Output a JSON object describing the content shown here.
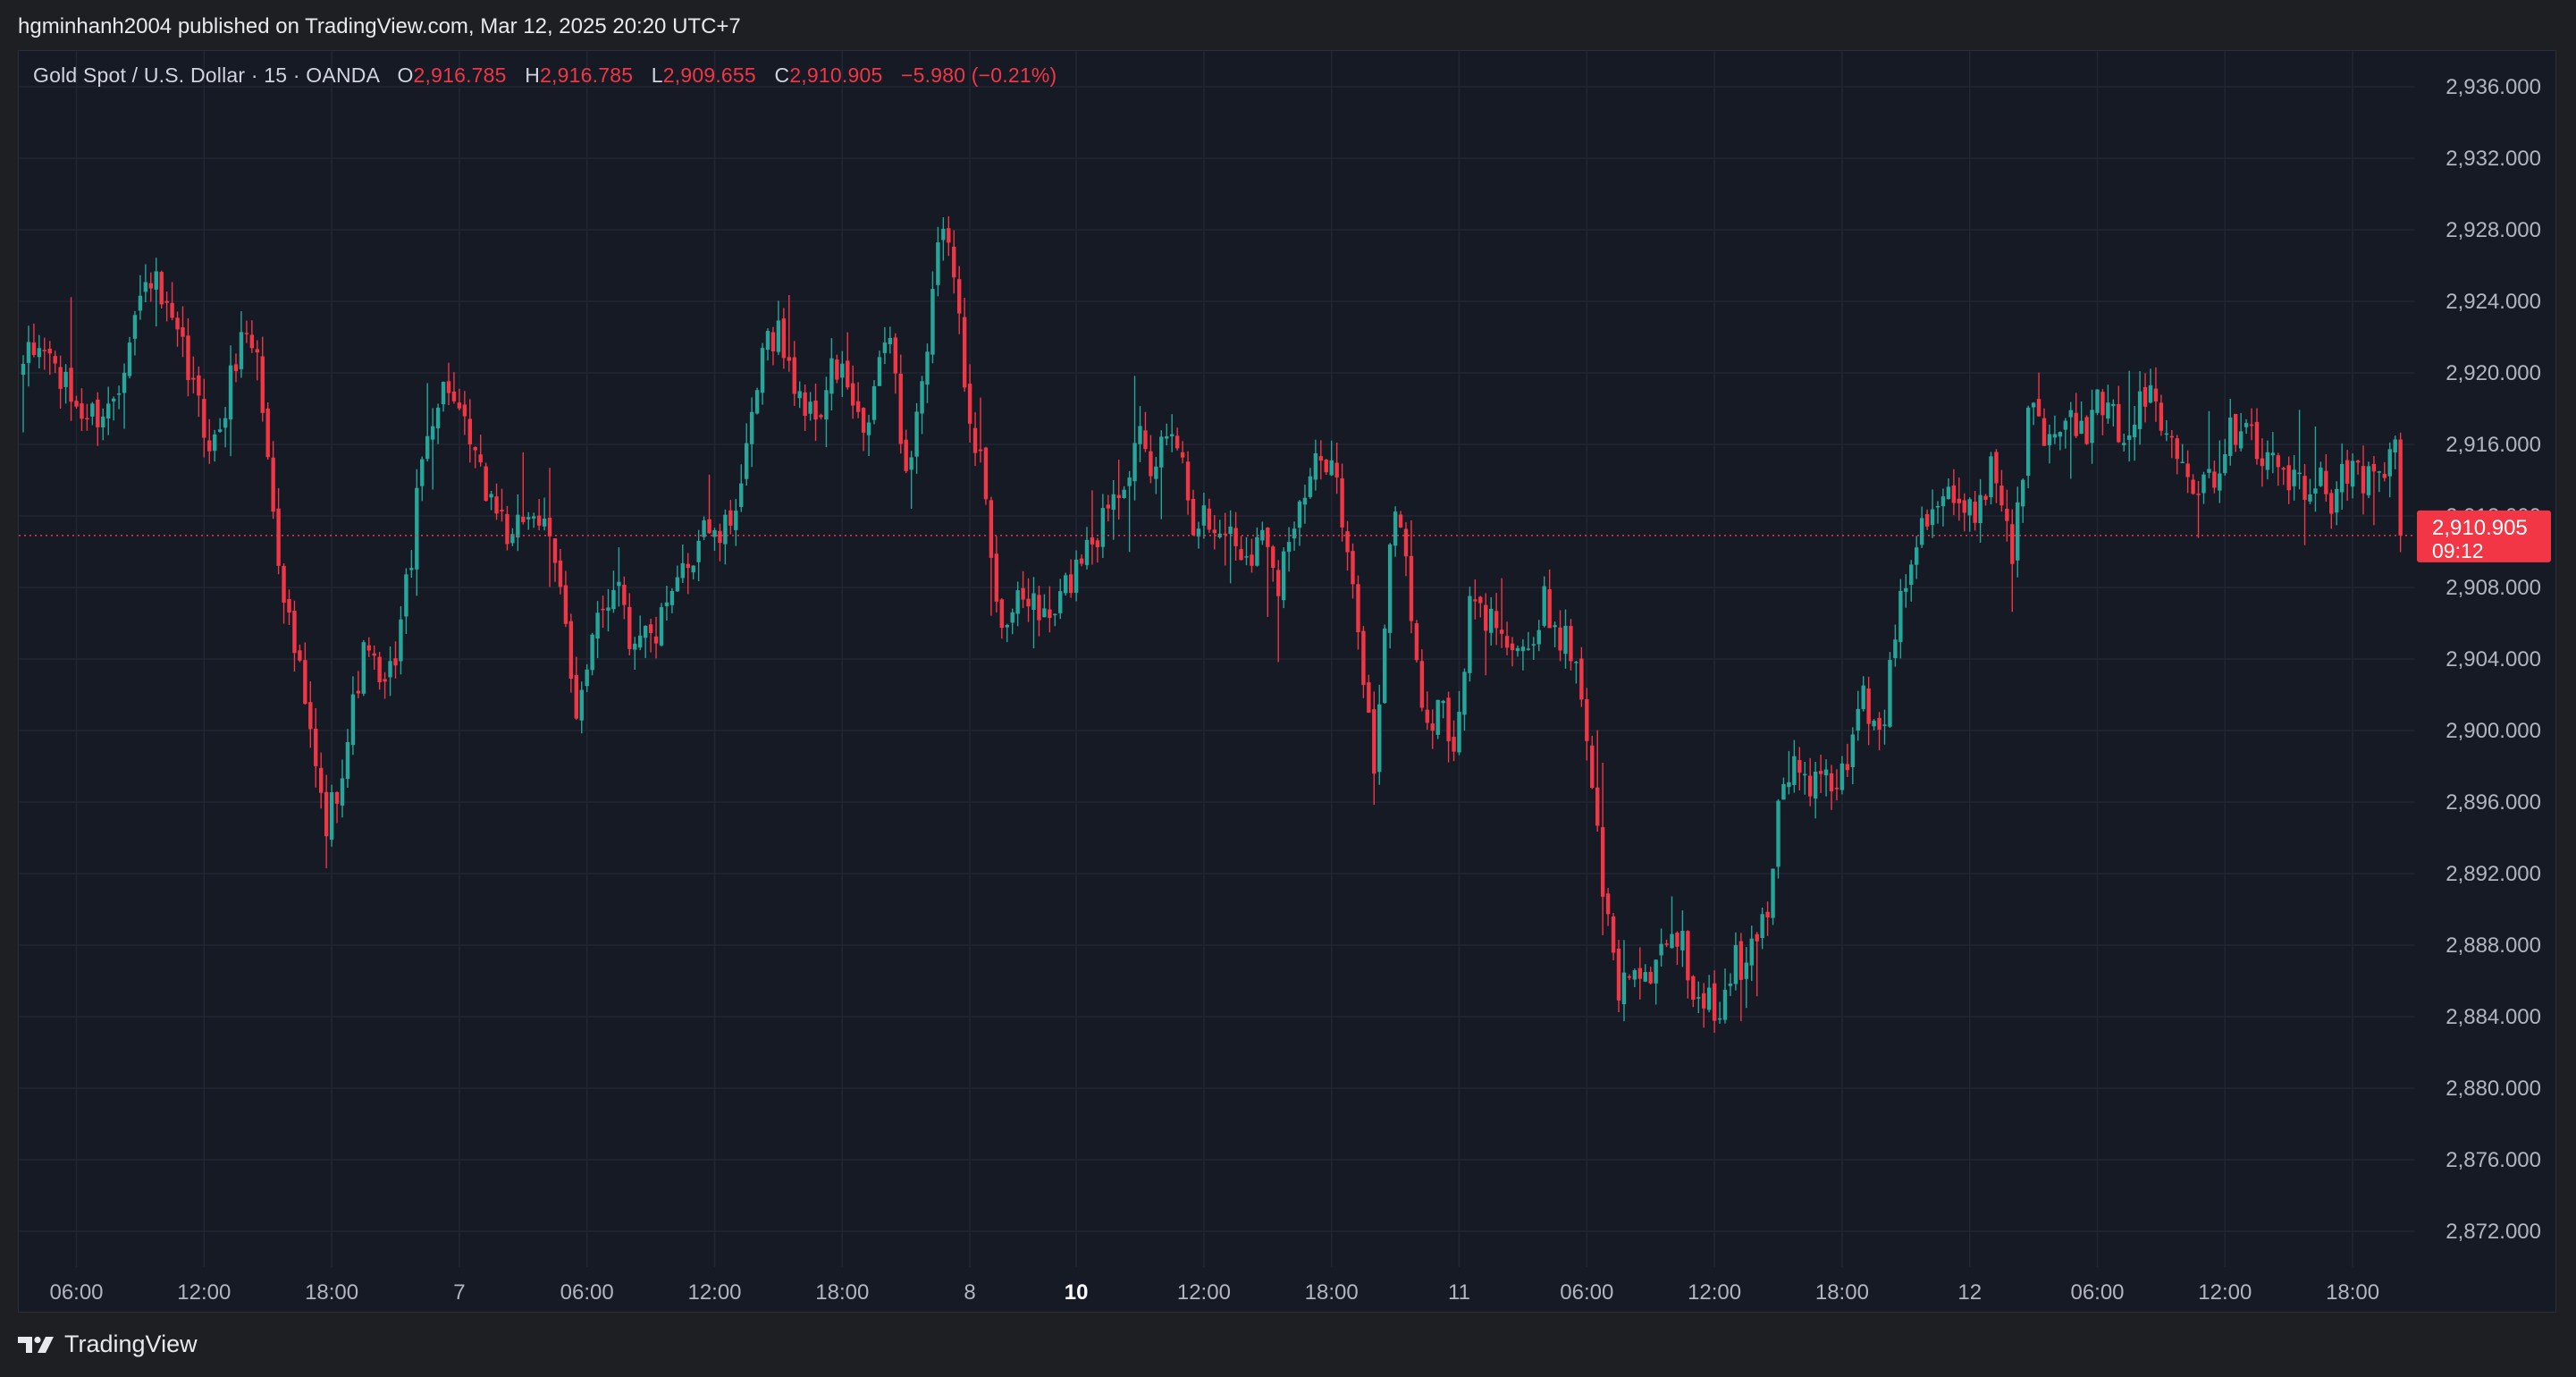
{
  "header": {
    "publish_line": "hgminhanh2004 published on TradingView.com, Mar 12, 2025 20:20 UTC+7"
  },
  "legend": {
    "symbol": "Gold Spot / U.S. Dollar · 15 · OANDA",
    "open_label": "O",
    "open": "2,916.785",
    "high_label": "H",
    "high": "2,916.785",
    "low_label": "L",
    "low": "2,909.655",
    "close_label": "C",
    "close": "2,910.905",
    "change": "−5.980 (−0.21%)"
  },
  "price_tag": {
    "price": "2,910.905",
    "countdown": "09:12"
  },
  "footer": {
    "brand": "TradingView",
    "logo_icon": "tradingview-logo-icon"
  },
  "colors": {
    "up": "#26a69a",
    "down": "#f23645",
    "background": "#161a25",
    "grid": "#222633",
    "axis_text": "#b2b5be"
  },
  "chart_data": {
    "type": "candlestick",
    "title": "Gold Spot / U.S. Dollar · 15 · OANDA",
    "ylim": [
      2870,
      2938
    ],
    "y_ticks": [
      "2,872.000",
      "2,876.000",
      "2,880.000",
      "2,884.000",
      "2,888.000",
      "2,892.000",
      "2,896.000",
      "2,900.000",
      "2,904.000",
      "2,908.000",
      "2,912.000",
      "2,916.000",
      "2,920.000",
      "2,924.000",
      "2,928.000",
      "2,932.000",
      "2,936.000"
    ],
    "x_ticks": [
      {
        "label": "06:00",
        "bar": 10,
        "bold": false
      },
      {
        "label": "12:00",
        "bar": 34,
        "bold": false
      },
      {
        "label": "18:00",
        "bar": 58,
        "bold": false
      },
      {
        "label": "7",
        "bar": 82,
        "bold": false
      },
      {
        "label": "06:00",
        "bar": 106,
        "bold": false
      },
      {
        "label": "12:00",
        "bar": 130,
        "bold": false
      },
      {
        "label": "18:00",
        "bar": 154,
        "bold": false
      },
      {
        "label": "8",
        "bar": 178,
        "bold": false
      },
      {
        "label": "10",
        "bar": 198,
        "bold": true
      },
      {
        "label": "12:00",
        "bar": 222,
        "bold": false
      },
      {
        "label": "18:00",
        "bar": 246,
        "bold": false
      },
      {
        "label": "11",
        "bar": 270,
        "bold": false
      },
      {
        "label": "06:00",
        "bar": 294,
        "bold": false
      },
      {
        "label": "12:00",
        "bar": 318,
        "bold": false
      },
      {
        "label": "18:00",
        "bar": 342,
        "bold": false
      },
      {
        "label": "12",
        "bar": 366,
        "bold": false
      },
      {
        "label": "06:00",
        "bar": 390,
        "bold": false
      },
      {
        "label": "12:00",
        "bar": 414,
        "bold": false
      },
      {
        "label": "18:00",
        "bar": 438,
        "bold": false
      }
    ],
    "bar_count": 448,
    "last_price": 2910.905,
    "path_points": [
      [
        0,
        2920.5
      ],
      [
        4,
        2921.5
      ],
      [
        8,
        2919
      ],
      [
        12,
        2917.5
      ],
      [
        16,
        2918
      ],
      [
        18,
        2919.5
      ],
      [
        20,
        2922.5
      ],
      [
        24,
        2925.5
      ],
      [
        27,
        2923
      ],
      [
        30,
        2921
      ],
      [
        34,
        2917
      ],
      [
        36,
        2916
      ],
      [
        38,
        2918
      ],
      [
        40,
        2921
      ],
      [
        42,
        2922.5
      ],
      [
        44,
        2921
      ],
      [
        46,
        2915
      ],
      [
        48,
        2910
      ],
      [
        50,
        2906
      ],
      [
        52,
        2903
      ],
      [
        54,
        2899.5
      ],
      [
        56,
        2896
      ],
      [
        57,
        2894.5
      ],
      [
        59,
        2897
      ],
      [
        61,
        2899.5
      ],
      [
        63,
        2903
      ],
      [
        65,
        2905
      ],
      [
        67,
        2902
      ],
      [
        69,
        2903
      ],
      [
        71,
        2906
      ],
      [
        73,
        2910
      ],
      [
        75,
        2915
      ],
      [
        77,
        2918
      ],
      [
        80,
        2919.5
      ],
      [
        82,
        2917
      ],
      [
        84,
        2916
      ],
      [
        86,
        2914
      ],
      [
        88,
        2913
      ],
      [
        90,
        2912
      ],
      [
        92,
        2910
      ],
      [
        94,
        2912
      ],
      [
        96,
        2912.5
      ],
      [
        98,
        2911
      ],
      [
        100,
        2909
      ],
      [
        102,
        2906.5
      ],
      [
        104,
        2901
      ],
      [
        106,
        2903
      ],
      [
        108,
        2906
      ],
      [
        110,
        2907.5
      ],
      [
        112,
        2909
      ],
      [
        114,
        2905
      ],
      [
        116,
        2906
      ],
      [
        118,
        2905
      ],
      [
        120,
        2906
      ],
      [
        122,
        2907
      ],
      [
        124,
        2909
      ],
      [
        126,
        2910
      ],
      [
        128,
        2912
      ],
      [
        130,
        2910.5
      ],
      [
        132,
        2911
      ],
      [
        134,
        2913
      ],
      [
        136,
        2915
      ],
      [
        138,
        2919
      ],
      [
        140,
        2922
      ],
      [
        142,
        2922.5
      ],
      [
        144,
        2920
      ],
      [
        146,
        2919
      ],
      [
        148,
        2917.5
      ],
      [
        150,
        2918
      ],
      [
        152,
        2920
      ],
      [
        154,
        2920
      ],
      [
        156,
        2918
      ],
      [
        158,
        2916
      ],
      [
        160,
        2919
      ],
      [
        162,
        2922
      ],
      [
        164,
        2920
      ],
      [
        166,
        2914
      ],
      [
        168,
        2918
      ],
      [
        170,
        2921
      ],
      [
        172,
        2926.5
      ],
      [
        174,
        2928
      ],
      [
        175,
        2925
      ],
      [
        177,
        2920
      ],
      [
        179,
        2916.5
      ],
      [
        181,
        2913
      ],
      [
        182,
        2909
      ],
      [
        184,
        2906.5
      ],
      [
        186,
        2906.5
      ],
      [
        188,
        2907
      ],
      [
        190,
        2907.5
      ],
      [
        192,
        2906
      ],
      [
        194,
        2906.5
      ],
      [
        196,
        2908
      ],
      [
        198,
        2909
      ],
      [
        200,
        2911
      ],
      [
        202,
        2911
      ],
      [
        204,
        2913
      ],
      [
        206,
        2914
      ],
      [
        208,
        2915
      ],
      [
        210,
        2916
      ],
      [
        212,
        2914
      ],
      [
        214,
        2916
      ],
      [
        216,
        2917.5
      ],
      [
        218,
        2915
      ],
      [
        220,
        2912
      ],
      [
        222,
        2912
      ],
      [
        224,
        2911
      ],
      [
        226,
        2911.5
      ],
      [
        228,
        2910.5
      ],
      [
        230,
        2910
      ],
      [
        232,
        2910.5
      ],
      [
        234,
        2911
      ],
      [
        236,
        2908.5
      ],
      [
        238,
        2911
      ],
      [
        240,
        2912
      ],
      [
        242,
        2914
      ],
      [
        244,
        2915
      ],
      [
        246,
        2916
      ],
      [
        248,
        2911.5
      ],
      [
        250,
        2907.5
      ],
      [
        252,
        2903
      ],
      [
        254,
        2898
      ],
      [
        256,
        2906
      ],
      [
        258,
        2913
      ],
      [
        260,
        2909.5
      ],
      [
        262,
        2904
      ],
      [
        264,
        2899.5
      ],
      [
        266,
        2902
      ],
      [
        268,
        2899.5
      ],
      [
        270,
        2900
      ],
      [
        272,
        2907
      ],
      [
        274,
        2906.5
      ],
      [
        276,
        2906
      ],
      [
        278,
        2906.5
      ],
      [
        280,
        2904.5
      ],
      [
        282,
        2905
      ],
      [
        284,
        2904
      ],
      [
        286,
        2907
      ],
      [
        288,
        2906
      ],
      [
        290,
        2905
      ],
      [
        292,
        2904
      ],
      [
        294,
        2900
      ],
      [
        296,
        2894
      ],
      [
        298,
        2889
      ],
      [
        300,
        2885.5
      ],
      [
        302,
        2886.5
      ],
      [
        304,
        2887
      ],
      [
        306,
        2886
      ],
      [
        308,
        2887
      ],
      [
        310,
        2888
      ],
      [
        312,
        2888.5
      ],
      [
        314,
        2885
      ],
      [
        316,
        2885.5
      ],
      [
        318,
        2884
      ],
      [
        320,
        2885
      ],
      [
        322,
        2887
      ],
      [
        324,
        2886.5
      ],
      [
        326,
        2889
      ],
      [
        328,
        2890
      ],
      [
        330,
        2896
      ],
      [
        332,
        2898
      ],
      [
        334,
        2897.5
      ],
      [
        336,
        2897
      ],
      [
        338,
        2897
      ],
      [
        340,
        2897
      ],
      [
        342,
        2897.5
      ],
      [
        344,
        2899
      ],
      [
        346,
        2903
      ],
      [
        348,
        2899.5
      ],
      [
        350,
        2901
      ],
      [
        352,
        2906
      ],
      [
        354,
        2909
      ],
      [
        356,
        2911
      ],
      [
        358,
        2912.5
      ],
      [
        360,
        2913
      ],
      [
        362,
        2913.5
      ],
      [
        364,
        2912
      ],
      [
        366,
        2912
      ],
      [
        368,
        2913
      ],
      [
        370,
        2915
      ],
      [
        372,
        2913
      ],
      [
        374,
        2910
      ],
      [
        376,
        2915
      ],
      [
        378,
        2919
      ],
      [
        380,
        2917
      ],
      [
        382,
        2917.5
      ],
      [
        384,
        2918
      ],
      [
        386,
        2916
      ],
      [
        388,
        2917
      ],
      [
        390,
        2918
      ],
      [
        392,
        2917.5
      ],
      [
        394,
        2917
      ],
      [
        396,
        2917
      ],
      [
        398,
        2918
      ],
      [
        400,
        2919
      ],
      [
        402,
        2917
      ],
      [
        404,
        2916.5
      ],
      [
        406,
        2916
      ],
      [
        408,
        2914
      ],
      [
        410,
        2914.5
      ],
      [
        412,
        2914.5
      ],
      [
        414,
        2916
      ],
      [
        416,
        2917
      ],
      [
        418,
        2918
      ],
      [
        420,
        2916
      ],
      [
        422,
        2915
      ],
      [
        424,
        2915
      ],
      [
        426,
        2914
      ],
      [
        428,
        2913.5
      ],
      [
        430,
        2913
      ],
      [
        432,
        2914
      ],
      [
        434,
        2913
      ],
      [
        436,
        2915
      ],
      [
        438,
        2914.5
      ],
      [
        440,
        2914
      ],
      [
        442,
        2914
      ],
      [
        444,
        2914
      ],
      [
        446,
        2916.5
      ],
      [
        447,
        2910.9
      ]
    ]
  }
}
